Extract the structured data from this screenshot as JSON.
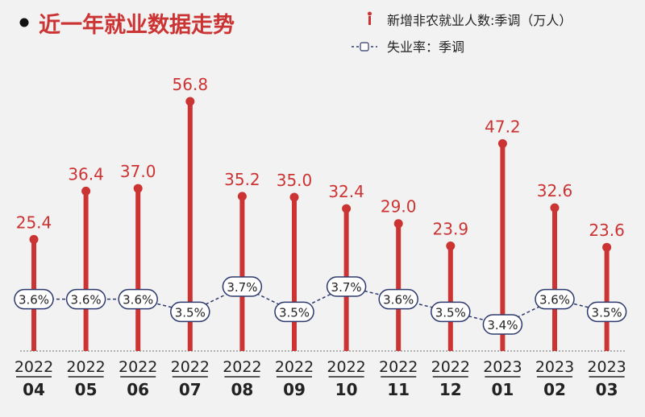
{
  "title": "近一年就业数据走势",
  "legend": {
    "bar_label": "新增非农就业人数:季调（万人）",
    "line_label": "失业率：季调"
  },
  "colors": {
    "bar": "#cc3333",
    "title": "#cc3333",
    "line": "#2e3a6e",
    "text": "#222222"
  },
  "chart_data": {
    "type": "bar",
    "categories_year": [
      "2022",
      "2022",
      "2022",
      "2022",
      "2022",
      "2022",
      "2022",
      "2022",
      "2022",
      "2023",
      "2023",
      "2023"
    ],
    "categories_month": [
      "04",
      "05",
      "06",
      "07",
      "08",
      "09",
      "10",
      "11",
      "12",
      "01",
      "02",
      "03"
    ],
    "series": [
      {
        "name": "新增非农就业人数:季调（万人）",
        "type": "lollipop",
        "values": [
          25.4,
          36.4,
          37.0,
          56.8,
          35.2,
          35.0,
          32.4,
          29.0,
          23.9,
          47.2,
          32.6,
          23.6
        ],
        "labels": [
          "25.4",
          "36.4",
          "37.0",
          "56.8",
          "35.2",
          "35.0",
          "32.4",
          "29.0",
          "23.9",
          "47.2",
          "32.6",
          "23.6"
        ]
      },
      {
        "name": "失业率：季调",
        "type": "line",
        "values": [
          3.6,
          3.6,
          3.6,
          3.5,
          3.7,
          3.5,
          3.7,
          3.6,
          3.5,
          3.4,
          3.6,
          3.5
        ],
        "labels": [
          "3.6%",
          "3.6%",
          "3.6%",
          "3.5%",
          "3.7%",
          "3.5%",
          "3.7%",
          "3.6%",
          "3.5%",
          "3.4%",
          "3.6%",
          "3.5%"
        ]
      }
    ],
    "grid": false,
    "legend_position": "top-right"
  }
}
